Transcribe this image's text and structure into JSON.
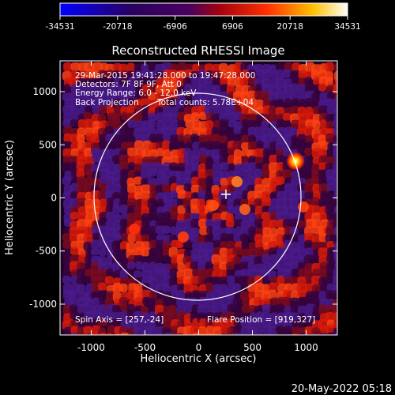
{
  "colorbar": {
    "ticks": [
      "-34531",
      "-20718",
      "-6906",
      "6906",
      "20718",
      "34531"
    ],
    "colors": [
      "#0000ff",
      "#2a0055",
      "#500070",
      "#ff1a00",
      "#ffc000",
      "#ffffff"
    ]
  },
  "plot": {
    "title": "Reconstructed RHESSI Image",
    "xlabel": "Heliocentric X (arcsec)",
    "ylabel": "Heliocentric Y (arcsec)",
    "x_ticks": [
      "-1000",
      "-500",
      "0",
      "500",
      "1000"
    ],
    "y_ticks": [
      "1000",
      "500",
      "0",
      "-500",
      "-1000"
    ],
    "xlim": [
      -1290,
      1290
    ],
    "ylim": [
      -1290,
      1290
    ]
  },
  "annotations": {
    "line1": "29-Mar-2015 19:41:28.000 to 19:47:28.000",
    "line2": "Detectors: 7F 8F 9F, Att 0",
    "line3": "Energy Range: 6.0 - 12.0 keV",
    "line4a": "Back Projection",
    "line4b": "Total counts: 5.78E+04",
    "spin_axis": "Spin Axis = [257,-24]",
    "flare_position": "Flare Position = [919,327]"
  },
  "features": {
    "solar_limb_radius_arcsec": 960,
    "spin_axis_point": [
      257,
      -24
    ],
    "flare_position_point": [
      919,
      327
    ]
  },
  "timestamp": "20-May-2022 05:18"
}
